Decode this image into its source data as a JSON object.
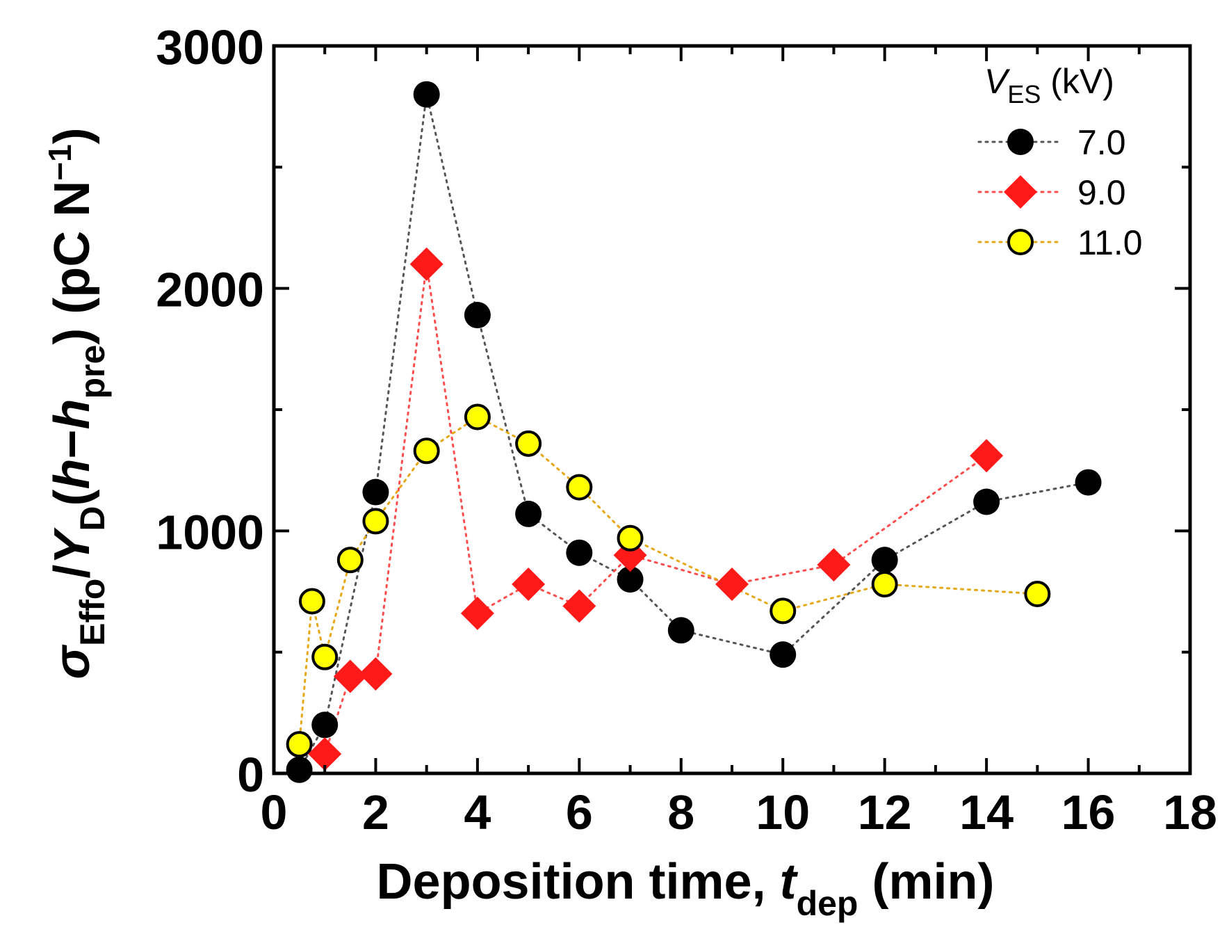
{
  "chart_data": {
    "type": "scatter",
    "xlabel": {
      "main": "Deposition time, ",
      "var": "t",
      "sub": "dep",
      "unit": " (min)"
    },
    "ylabel": {
      "sigma": "σ",
      "sigma_sub": "Effo",
      "slash": "/",
      "Y": "Y",
      "Y_sub": "D",
      "paren_open": "(",
      "h1": "h",
      "minus": "−",
      "h2": "h",
      "h2_sub": "pre",
      "paren_close": ")",
      "unit_open": " (pC N",
      "unit_sup": "−1",
      "unit_close": ")"
    },
    "xlim": [
      0,
      18
    ],
    "ylim": [
      0,
      3000
    ],
    "xticks": [
      "0",
      "2",
      "4",
      "6",
      "8",
      "10",
      "12",
      "14",
      "16",
      "18"
    ],
    "yticks": [
      "0",
      "1000",
      "2000",
      "3000"
    ],
    "legend": {
      "title_var": "V",
      "title_sub": "ES",
      "title_unit": " (kV)",
      "position": "top-right"
    },
    "series": [
      {
        "name": "7.0",
        "marker": "circle",
        "fill": "#000000",
        "line_color": "#555555",
        "x": [
          0.5,
          1,
          2,
          3,
          4,
          5,
          6,
          7,
          8,
          10,
          12,
          14,
          16
        ],
        "y": [
          15,
          200,
          1160,
          2800,
          1890,
          1070,
          910,
          800,
          590,
          490,
          880,
          1120,
          1200
        ]
      },
      {
        "name": "9.0",
        "marker": "diamond",
        "fill": "#ff1a1a",
        "line_color": "#ff4d4d",
        "x": [
          1,
          1.5,
          2,
          3,
          4,
          5,
          6,
          7,
          9,
          11,
          14
        ],
        "y": [
          80,
          400,
          410,
          2100,
          660,
          780,
          690,
          900,
          780,
          860,
          1310
        ]
      },
      {
        "name": "11.0",
        "marker": "circle-outline",
        "fill": "#ffff00",
        "line_color": "#e6a817",
        "x": [
          0.5,
          0.75,
          1,
          1.5,
          2,
          3,
          4,
          5,
          6,
          7,
          10,
          12,
          15
        ],
        "y": [
          120,
          710,
          480,
          880,
          1040,
          1330,
          1470,
          1360,
          1180,
          970,
          670,
          780,
          740
        ]
      }
    ]
  }
}
